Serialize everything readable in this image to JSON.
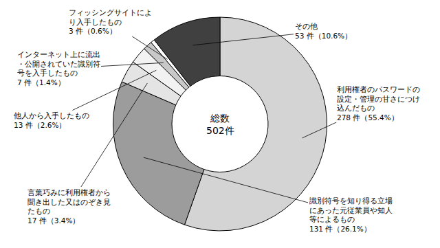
{
  "chart_data": {
    "type": "donut",
    "categories": [
      "利用権者のパスワードの設定・管理の甘さにつけ込んだもの",
      "識別符号を知り得る立場にあった元従業員や知人等によるもの",
      "言葉巧みに利用権者から聞き出した又はのぞき見たもの",
      "他人から入手したもの",
      "インターネット上に流出・公開されていた識別符号を入手したもの",
      "フィッシングサイトにより入手したもの",
      "その他"
    ],
    "values": [
      278,
      131,
      17,
      13,
      7,
      3,
      53
    ],
    "value_labels": [
      "278 件（55.4%）",
      "131 件（26.1%）",
      "17 件（3.4%）",
      "13 件（2.6%）",
      "7 件（1.4%）",
      "3 件（0.6%）",
      "53 件（10.6%）"
    ],
    "colors": [
      "#d4d4d4",
      "#9c9c9c",
      "#e4e4e4",
      "#f2f2f2",
      "#c8c8c8",
      "#ffffff",
      "#404040"
    ],
    "center_text": [
      "総数",
      "502件"
    ],
    "data_labels": true
  }
}
